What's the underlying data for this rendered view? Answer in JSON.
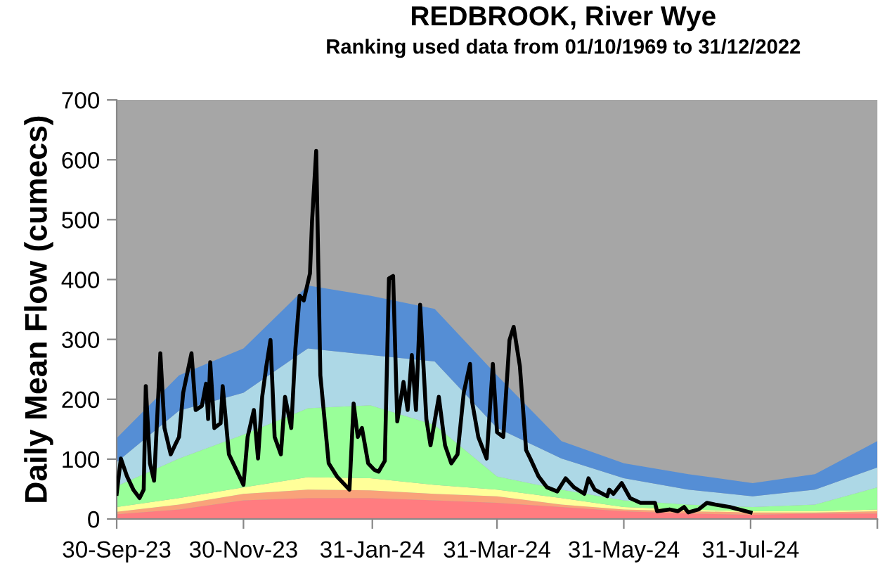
{
  "chart_data": {
    "type": "area",
    "stacked": true,
    "title": "REDBROOK, River Wye",
    "subtitle": "Ranking used data from 01/10/1969 to 31/12/2022",
    "ylabel": "Daily Mean Flow (cumecs)",
    "x": [
      "2023-09-30",
      "2023-10-30",
      "2023-11-30",
      "2023-12-31",
      "2024-01-30",
      "2024-03-01",
      "2024-03-31",
      "2024-05-01",
      "2024-05-31",
      "2024-07-01",
      "2024-08-01",
      "2024-08-31",
      "2024-09-30"
    ],
    "series": [
      {
        "color": "#ff7c80",
        "values": [
          8,
          16,
          31,
          35,
          35,
          31,
          27,
          20,
          13,
          9,
          7,
          9,
          9
        ]
      },
      {
        "color": "#f9a27a",
        "values": [
          4,
          8,
          11,
          14,
          13,
          11,
          11,
          4,
          3,
          4,
          4,
          2,
          4
        ]
      },
      {
        "color": "#ffff99",
        "values": [
          8,
          11,
          11,
          21,
          20,
          15,
          11,
          11,
          4,
          3,
          2,
          2,
          3
        ]
      },
      {
        "color": "#99ff99",
        "values": [
          35,
          66,
          88,
          115,
          122,
          100,
          22,
          14,
          11,
          8,
          7,
          11,
          37
        ]
      },
      {
        "color": "#add8e6",
        "values": [
          40,
          80,
          70,
          100,
          84,
          106,
          81,
          52,
          37,
          25,
          18,
          25,
          33
        ]
      },
      {
        "color": "#558ed5",
        "values": [
          40,
          59,
          74,
          105,
          99,
          88,
          88,
          29,
          25,
          26,
          22,
          26,
          44
        ]
      },
      {
        "type": "line",
        "color": "#000000",
        "x": [
          "2023-09-30",
          "2023-10-02",
          "2023-10-05",
          "2023-10-08",
          "2023-10-11",
          "2023-10-13",
          "2023-10-14",
          "2023-10-16",
          "2023-10-18",
          "2023-10-21",
          "2023-10-23",
          "2023-10-26",
          "2023-10-28",
          "2023-10-30",
          "2023-11-01",
          "2023-11-05",
          "2023-11-07",
          "2023-11-10",
          "2023-11-12",
          "2023-11-13",
          "2023-11-14",
          "2023-11-16",
          "2023-11-19",
          "2023-11-20",
          "2023-11-23",
          "2023-11-27",
          "2023-11-30",
          "2023-12-02",
          "2023-12-05",
          "2023-12-07",
          "2023-12-09",
          "2023-12-11",
          "2023-12-13",
          "2023-12-15",
          "2023-12-18",
          "2023-12-20",
          "2023-12-23",
          "2023-12-25",
          "2023-12-27",
          "2023-12-29",
          "2024-01-01",
          "2024-01-02",
          "2024-01-04",
          "2024-01-06",
          "2024-01-10",
          "2024-01-14",
          "2024-01-20",
          "2024-01-22",
          "2024-01-24",
          "2024-01-26",
          "2024-01-29",
          "2024-02-01",
          "2024-02-03",
          "2024-02-06",
          "2024-02-08",
          "2024-02-10",
          "2024-02-12",
          "2024-02-15",
          "2024-02-17",
          "2024-02-19",
          "2024-02-21",
          "2024-02-23",
          "2024-02-26",
          "2024-02-28",
          "2024-03-03",
          "2024-03-06",
          "2024-03-09",
          "2024-03-12",
          "2024-03-15",
          "2024-03-18",
          "2024-03-19",
          "2024-03-22",
          "2024-03-26",
          "2024-03-29",
          "2024-03-31",
          "2024-04-03",
          "2024-04-06",
          "2024-04-08",
          "2024-04-11",
          "2024-04-14",
          "2024-04-16",
          "2024-04-20",
          "2024-04-24",
          "2024-04-29",
          "2024-05-03",
          "2024-05-07",
          "2024-05-12",
          "2024-05-14",
          "2024-05-17",
          "2024-05-23",
          "2024-05-24",
          "2024-05-26",
          "2024-05-30",
          "2024-06-03",
          "2024-06-08",
          "2024-06-15",
          "2024-06-16",
          "2024-06-22",
          "2024-06-26",
          "2024-06-29",
          "2024-07-01",
          "2024-07-06",
          "2024-07-10",
          "2024-07-14",
          "2024-07-21",
          "2024-07-31"
        ],
        "values": [
          42,
          101,
          71,
          49,
          35,
          49,
          222,
          93,
          64,
          277,
          152,
          108,
          123,
          137,
          211,
          277,
          182,
          189,
          226,
          167,
          262,
          152,
          160,
          222,
          108,
          79,
          57,
          137,
          182,
          101,
          204,
          255,
          299,
          137,
          108,
          204,
          152,
          285,
          373,
          365,
          410,
          498,
          615,
          240,
          93,
          71,
          49,
          193,
          137,
          152,
          93,
          82,
          79,
          97,
          402,
          406,
          163,
          229,
          182,
          274,
          182,
          358,
          167,
          123,
          204,
          123,
          93,
          108,
          211,
          259,
          196,
          137,
          101,
          259,
          145,
          137,
          299,
          321,
          255,
          115,
          101,
          71,
          53,
          46,
          68,
          53,
          42,
          68,
          49,
          38,
          49,
          42,
          60,
          35,
          27,
          27,
          13,
          16,
          13,
          20,
          11,
          16,
          27,
          24,
          20,
          11
        ]
      }
    ],
    "xlim": [
      "2023-09-30",
      "2024-09-30"
    ],
    "xticks": [
      {
        "value": "2023-09-30",
        "label": "30-Sep-23"
      },
      {
        "value": "2023-11-30",
        "label": "30-Nov-23"
      },
      {
        "value": "2024-01-31",
        "label": "31-Jan-24"
      },
      {
        "value": "2024-03-31",
        "label": "31-Mar-24"
      },
      {
        "value": "2024-05-31",
        "label": "31-May-24"
      },
      {
        "value": "2024-07-31",
        "label": "31-Jul-24"
      },
      {
        "value": "2024-09-30",
        "label": null
      }
    ],
    "ylim": [
      0,
      700
    ],
    "yticks": [
      0,
      100,
      200,
      300,
      400,
      500,
      600,
      700
    ],
    "grid": false,
    "legend": false
  }
}
